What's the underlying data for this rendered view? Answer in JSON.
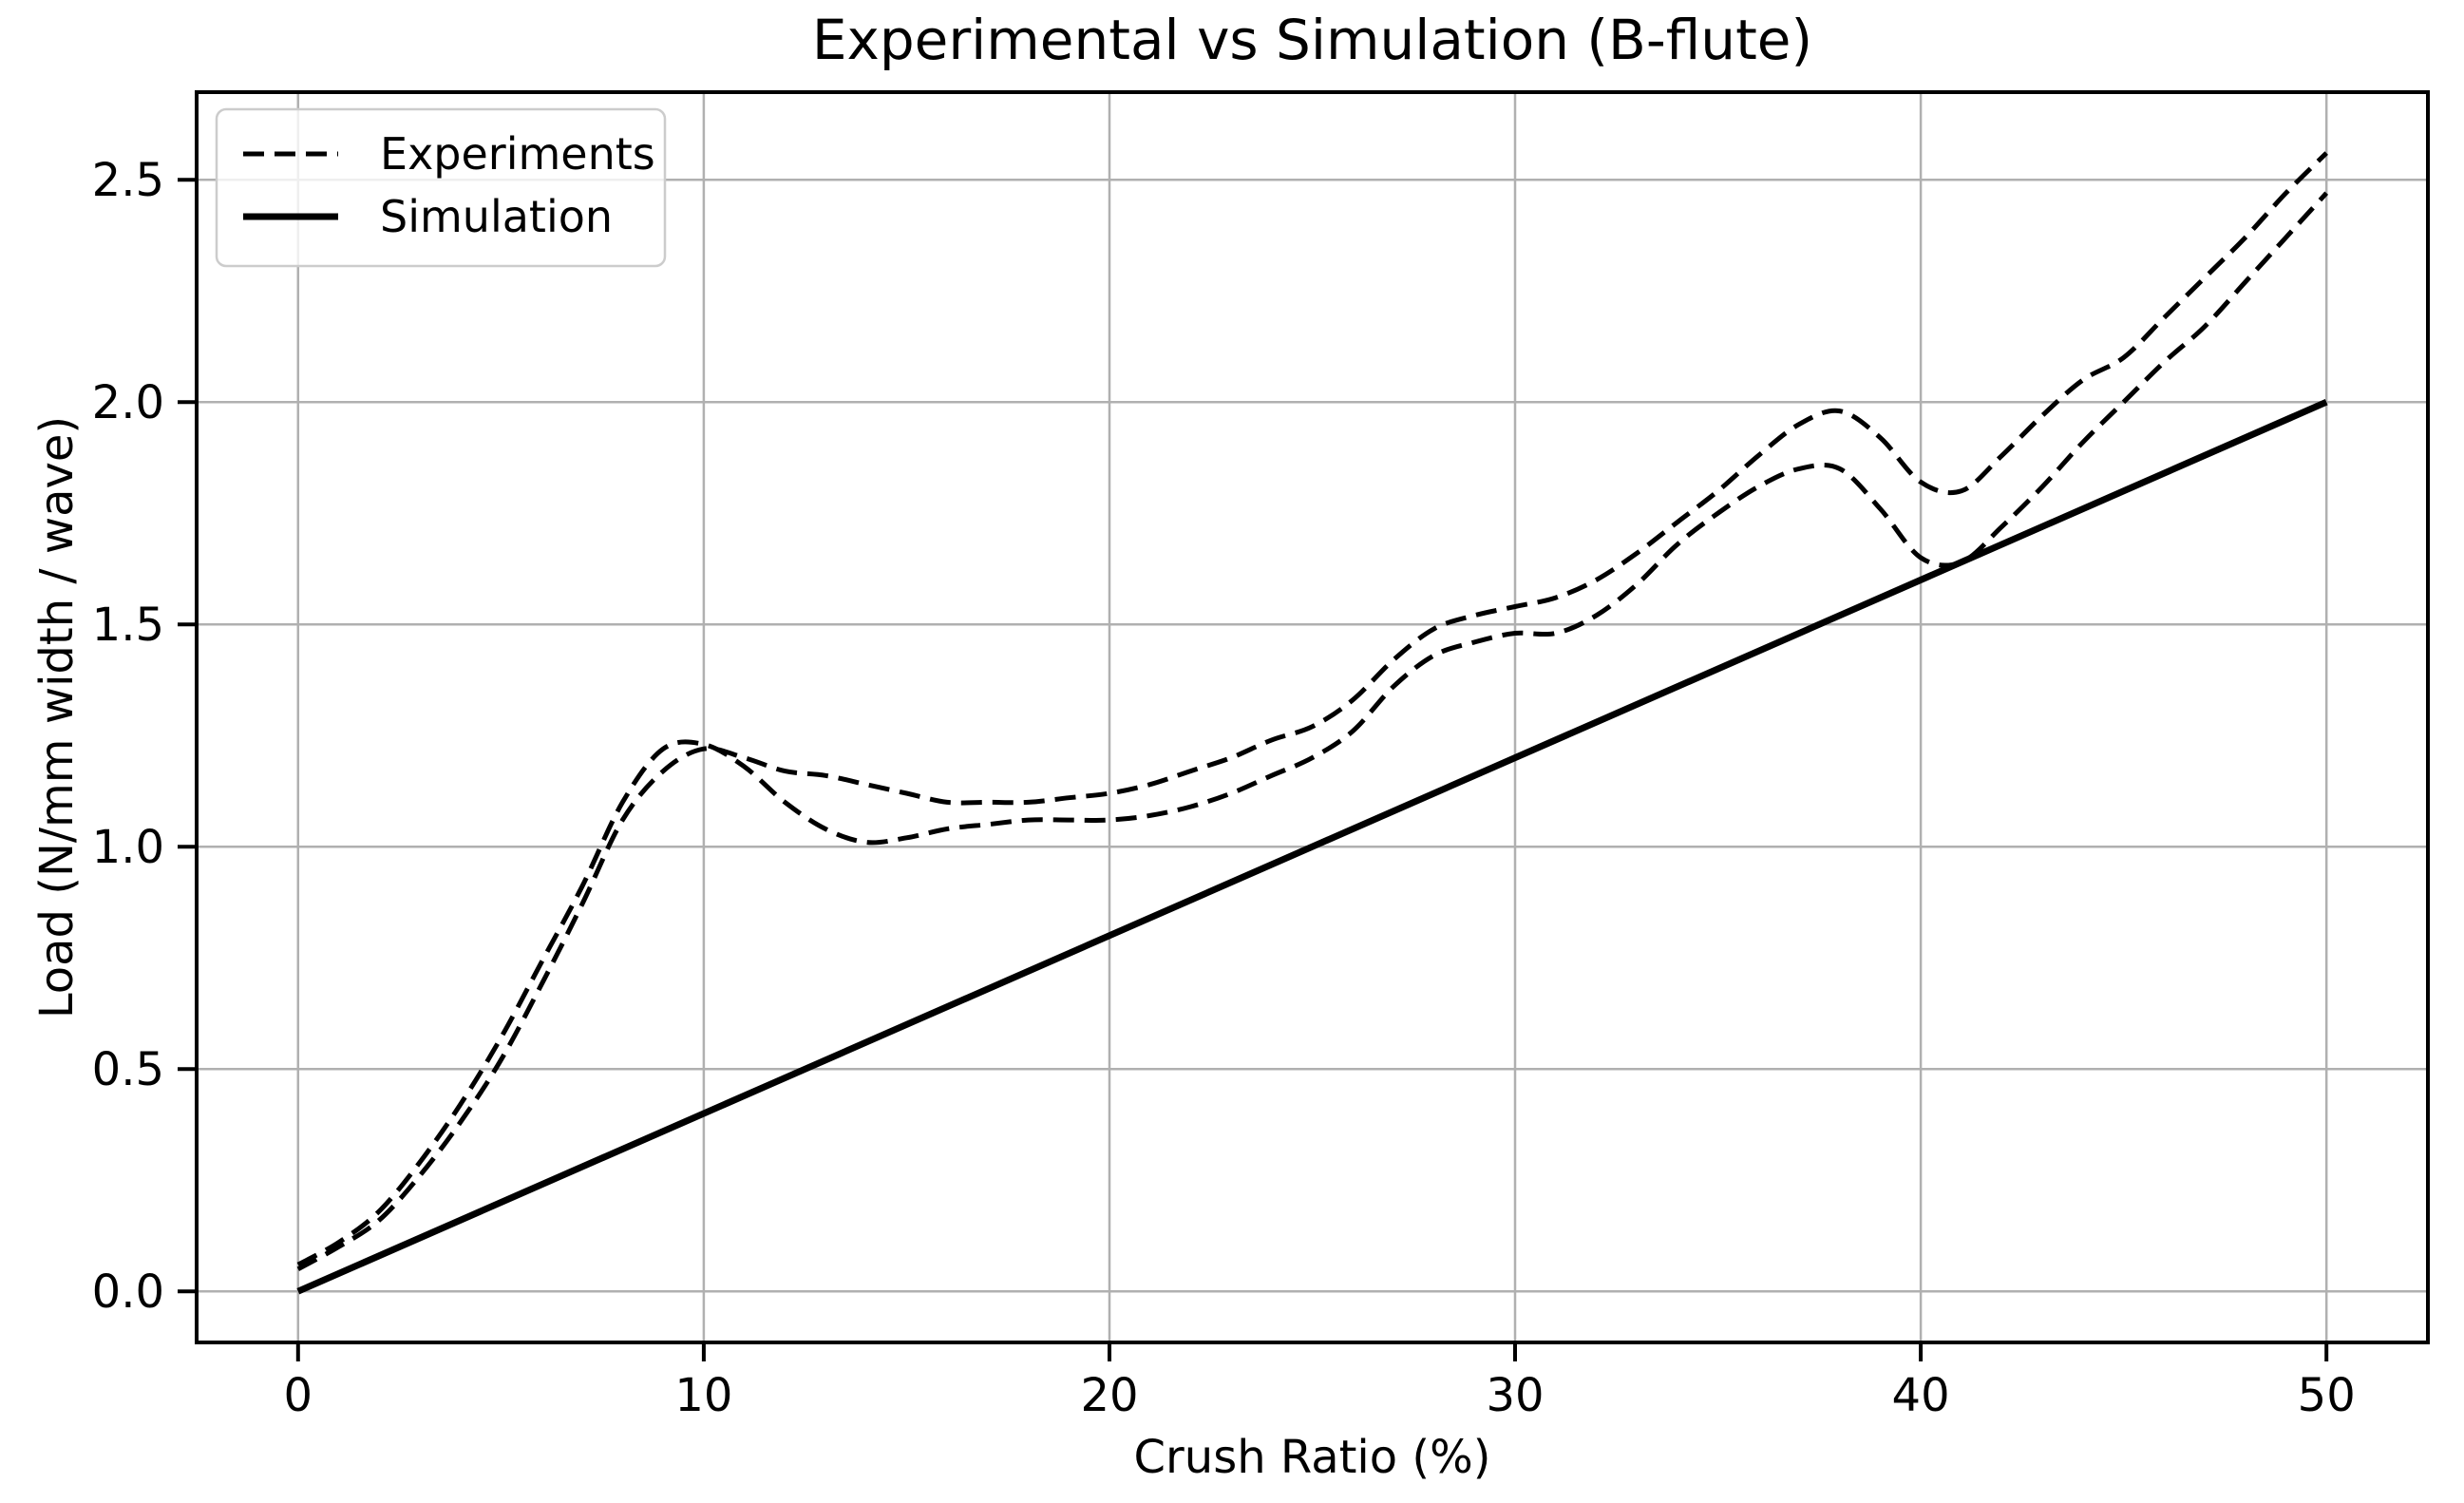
{
  "page": {
    "background": "#ffffff",
    "text_color": "#000000"
  },
  "chart_data": {
    "type": "line",
    "title": "Experimental vs Simulation (B-flute)",
    "xlabel": "Crush Ratio (%)",
    "ylabel": "Load (N/mm width / wave)",
    "xlim": [
      -2.5,
      52.5
    ],
    "ylim": [
      -0.115,
      2.697
    ],
    "xticks": [
      0,
      10,
      20,
      30,
      40,
      50
    ],
    "xtick_labels": [
      "0",
      "10",
      "20",
      "30",
      "40",
      "50"
    ],
    "yticks": [
      0.0,
      0.5,
      1.0,
      1.5,
      2.0,
      2.5
    ],
    "ytick_labels": [
      "0.0",
      "0.5",
      "1.0",
      "1.5",
      "2.0",
      "2.5"
    ],
    "grid": true,
    "grid_color": "#b0b0b0",
    "spine_color": "#000000",
    "line_color": "#000000",
    "legend": {
      "position": "upper-left",
      "entries": [
        {
          "label": "Experiments",
          "style": "dashed"
        },
        {
          "label": "Simulation",
          "style": "solid"
        }
      ]
    },
    "series": [
      {
        "name": "experiments-run-1",
        "legend": "Experiments",
        "style": "dashed",
        "x": [
          0,
          1,
          2,
          3,
          4,
          5,
          6,
          7,
          8,
          9,
          10,
          11,
          12,
          13,
          14,
          15,
          16,
          17,
          18,
          19,
          20,
          21,
          22,
          23,
          24,
          25,
          26,
          27,
          28,
          29,
          30,
          31,
          32,
          33,
          34,
          35,
          36,
          37,
          38,
          39,
          40,
          41,
          42,
          43,
          44,
          45,
          46,
          47,
          48,
          49,
          50
        ],
        "y": [
          0.06,
          0.11,
          0.18,
          0.29,
          0.42,
          0.57,
          0.74,
          0.91,
          1.1,
          1.22,
          1.23,
          1.18,
          1.1,
          1.04,
          1.01,
          1.02,
          1.04,
          1.05,
          1.06,
          1.06,
          1.06,
          1.07,
          1.09,
          1.12,
          1.16,
          1.2,
          1.26,
          1.36,
          1.43,
          1.46,
          1.48,
          1.48,
          1.52,
          1.59,
          1.68,
          1.75,
          1.81,
          1.85,
          1.85,
          1.76,
          1.65,
          1.64,
          1.72,
          1.81,
          1.91,
          2.0,
          2.09,
          2.17,
          2.27,
          2.37,
          2.47
        ]
      },
      {
        "name": "experiments-run-2",
        "legend": "Experiments",
        "style": "dashed",
        "x": [
          0,
          1,
          2,
          3,
          4,
          5,
          6,
          7,
          8,
          9,
          10,
          11,
          12,
          13,
          14,
          15,
          16,
          17,
          18,
          19,
          20,
          21,
          22,
          23,
          24,
          25,
          26,
          27,
          28,
          29,
          30,
          31,
          32,
          33,
          34,
          35,
          36,
          37,
          38,
          39,
          40,
          41,
          42,
          43,
          44,
          45,
          46,
          47,
          48,
          49,
          50
        ],
        "y": [
          0.05,
          0.1,
          0.16,
          0.26,
          0.38,
          0.52,
          0.69,
          0.87,
          1.06,
          1.17,
          1.22,
          1.2,
          1.17,
          1.16,
          1.14,
          1.12,
          1.1,
          1.1,
          1.1,
          1.11,
          1.12,
          1.14,
          1.17,
          1.2,
          1.24,
          1.27,
          1.33,
          1.42,
          1.49,
          1.52,
          1.54,
          1.56,
          1.6,
          1.66,
          1.73,
          1.8,
          1.88,
          1.95,
          1.98,
          1.92,
          1.82,
          1.8,
          1.88,
          1.97,
          2.05,
          2.1,
          2.19,
          2.28,
          2.37,
          2.47,
          2.56
        ]
      },
      {
        "name": "simulation",
        "legend": "Simulation",
        "style": "solid",
        "x": [
          0,
          50
        ],
        "y": [
          0.0,
          2.0
        ]
      }
    ]
  }
}
